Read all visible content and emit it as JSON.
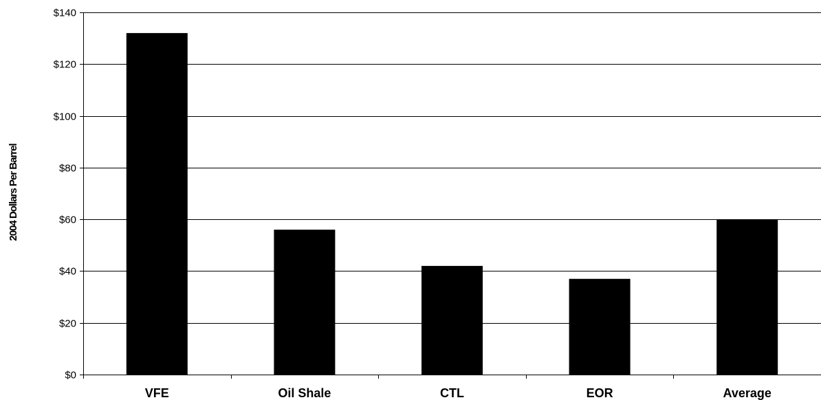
{
  "chart_data": {
    "type": "bar",
    "title": "",
    "xlabel": "",
    "ylabel": "2004 Dollars Per Barrel",
    "categories": [
      "VFE",
      "Oil Shale",
      "CTL",
      "EOR",
      "Average"
    ],
    "values": [
      132,
      56,
      42,
      37,
      60
    ],
    "ylim": [
      0,
      140
    ],
    "ytick_step": 20,
    "ytick_labels": [
      "$0",
      "$20",
      "$40",
      "$60",
      "$80",
      "$100",
      "$120",
      "$140"
    ],
    "grid": "horizontal",
    "bar_color": "#000000",
    "legend": "none"
  }
}
